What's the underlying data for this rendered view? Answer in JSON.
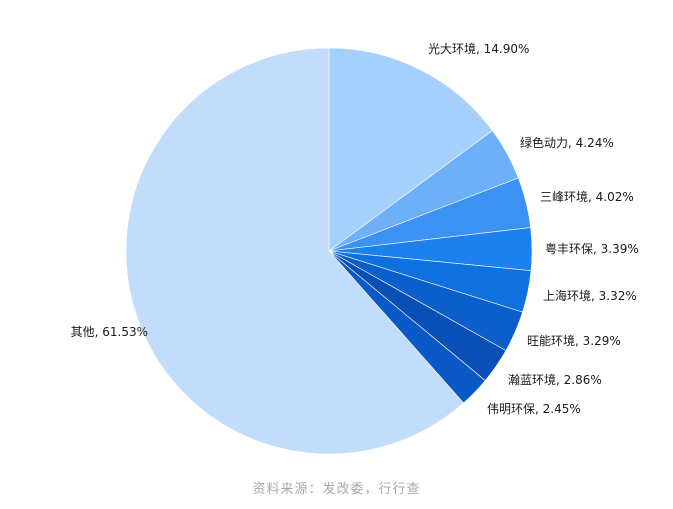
{
  "chart_data": {
    "type": "pie",
    "start_angle_deg": 0,
    "direction": "clockwise",
    "slices": [
      {
        "label": "光大环境",
        "value": 14.9,
        "display": "光大环境, 14.90%",
        "color": "#a5d0fb"
      },
      {
        "label": "绿色动力",
        "value": 4.24,
        "display": "绿色动力, 4.24%",
        "color": "#6eb0f7"
      },
      {
        "label": "三峰环境",
        "value": 4.02,
        "display": "三峰环境, 4.02%",
        "color": "#3b92f2"
      },
      {
        "label": "粤丰环保",
        "value": 3.39,
        "display": "粤丰环保, 3.39%",
        "color": "#1c80ee"
      },
      {
        "label": "上海环境",
        "value": 3.32,
        "display": "上海环境, 3.32%",
        "color": "#0f70e0"
      },
      {
        "label": "旺能环境",
        "value": 3.29,
        "display": "旺能环境, 3.29%",
        "color": "#0a5fcb"
      },
      {
        "label": "瀚蓝环境",
        "value": 2.86,
        "display": "瀚蓝环境, 2.86%",
        "color": "#094fb6"
      },
      {
        "label": "伟明环保",
        "value": 2.45,
        "display": "伟明环保, 2.45%",
        "color": "#0b59c6"
      },
      {
        "label": "其他",
        "value": 61.53,
        "display": "其他, 61.53%",
        "color": "#c2dcfb"
      }
    ]
  },
  "source_note": "资料来源：发改委，行行查"
}
